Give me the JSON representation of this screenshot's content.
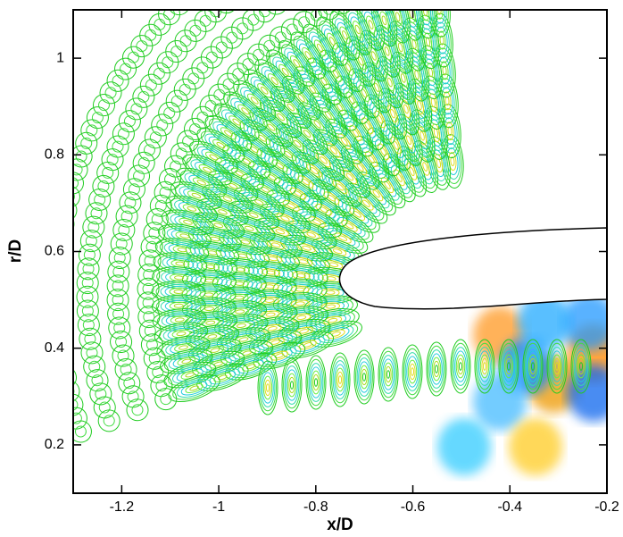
{
  "chart_data": {
    "type": "contour",
    "x_label": "x/D",
    "y_label": "r/D",
    "xlim": [
      -1.3,
      -0.2
    ],
    "ylim": [
      0.1,
      1.1
    ],
    "xticks": [
      -1.2,
      -1,
      -0.8,
      -0.6,
      -0.4,
      -0.2
    ],
    "yticks": [
      0.2,
      0.4,
      0.6,
      0.8,
      1
    ]
  }
}
